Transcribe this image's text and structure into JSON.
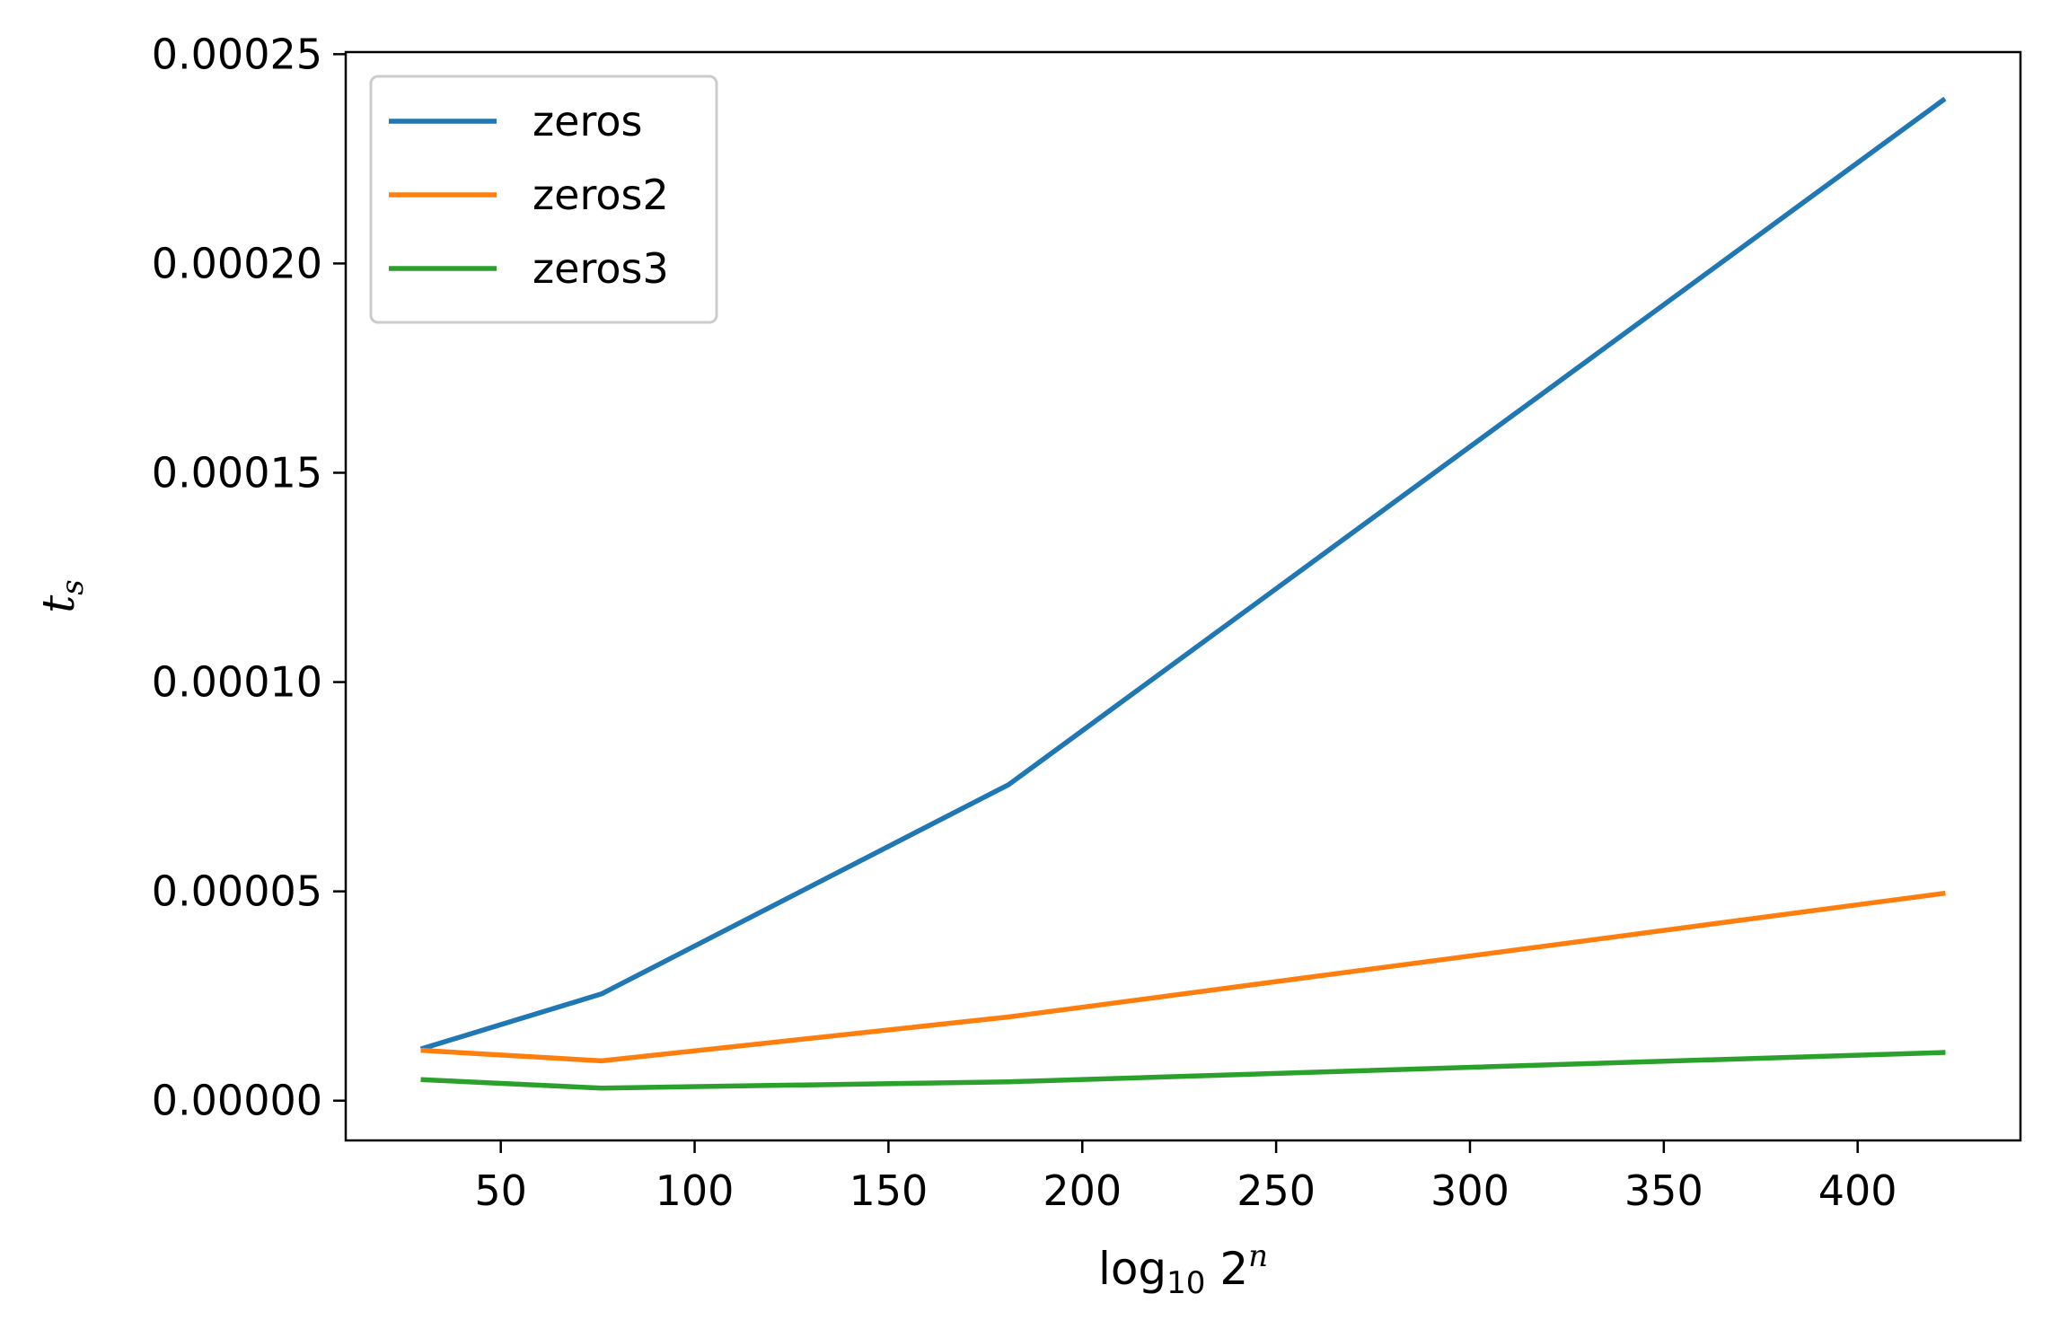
{
  "chart_data": {
    "type": "line",
    "x": [
      30,
      76,
      181,
      422
    ],
    "series": [
      {
        "name": "zeros",
        "color": "#1f77b4",
        "values": [
          1.25e-05,
          2.55e-05,
          7.55e-05,
          0.000239
        ]
      },
      {
        "name": "zeros2",
        "color": "#ff7f0e",
        "values": [
          1.2e-05,
          9.5e-06,
          2e-05,
          4.95e-05
        ]
      },
      {
        "name": "zeros3",
        "color": "#2ca02c",
        "values": [
          5e-06,
          3e-06,
          4.5e-06,
          1.15e-05
        ]
      }
    ],
    "xlim": [
      10,
      442
    ],
    "ylim": [
      -9.5e-06,
      0.0002505
    ],
    "xticks": [
      50,
      100,
      150,
      200,
      250,
      300,
      350,
      400
    ],
    "xtick_labels": [
      "50",
      "100",
      "150",
      "200",
      "250",
      "300",
      "350",
      "400"
    ],
    "yticks": [
      0,
      5e-05,
      0.0001,
      0.00015,
      0.0002,
      0.00025
    ],
    "ytick_labels": [
      "0.00000",
      "0.00005",
      "0.00010",
      "0.00015",
      "0.00020",
      "0.00025"
    ],
    "xlabel": {
      "main": "log",
      "sub": "10",
      "base": "2",
      "sup": "n"
    },
    "ylabel": {
      "main": "t",
      "sub": "s"
    },
    "legend_position": "top-left",
    "grid": false
  }
}
